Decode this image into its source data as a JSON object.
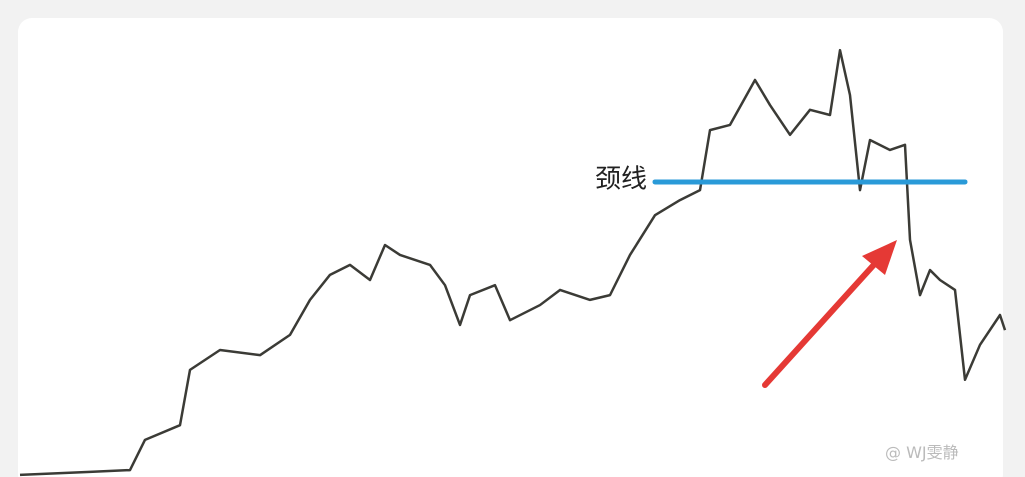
{
  "chart_data": {
    "type": "line",
    "x": [
      0,
      70,
      110,
      125,
      160,
      170,
      200,
      240,
      270,
      290,
      310,
      330,
      350,
      365,
      380,
      410,
      425,
      440,
      450,
      475,
      490,
      520,
      540,
      570,
      590,
      610,
      635,
      660,
      680,
      690,
      710,
      735,
      750,
      770,
      790,
      810,
      820,
      830,
      840,
      850,
      870,
      885,
      890,
      900,
      910,
      920,
      935,
      945,
      960,
      980,
      985
    ],
    "series": [
      {
        "color": "#3b3b36",
        "values": [
          0.5,
          1.2,
          1.6,
          8.6,
          12,
          24.8,
          29.4,
          28.2,
          32.9,
          41,
          46.8,
          49.1,
          45.6,
          53.7,
          51.4,
          49.1,
          44.4,
          35.2,
          42.1,
          44.4,
          36.3,
          39.8,
          43.3,
          41,
          42.1,
          51.4,
          60.6,
          64.1,
          66.4,
          80.3,
          81.5,
          91.9,
          86.1,
          79.2,
          85,
          83.8,
          98.8,
          88.4,
          66.4,
          78,
          75.7,
          76.9,
          54.9,
          42.1,
          47.9,
          45.6,
          43.3,
          22.5,
          30.6,
          37.5,
          34
        ]
      }
    ],
    "xlim": [
      0,
      985
    ],
    "ylim": [
      0,
      100
    ],
    "neckline": {
      "label": "颈线",
      "value": 68.3,
      "x": [
        635,
        945
      ],
      "color": "#2a9ad8"
    },
    "watermark": "@ WJ雯静"
  }
}
